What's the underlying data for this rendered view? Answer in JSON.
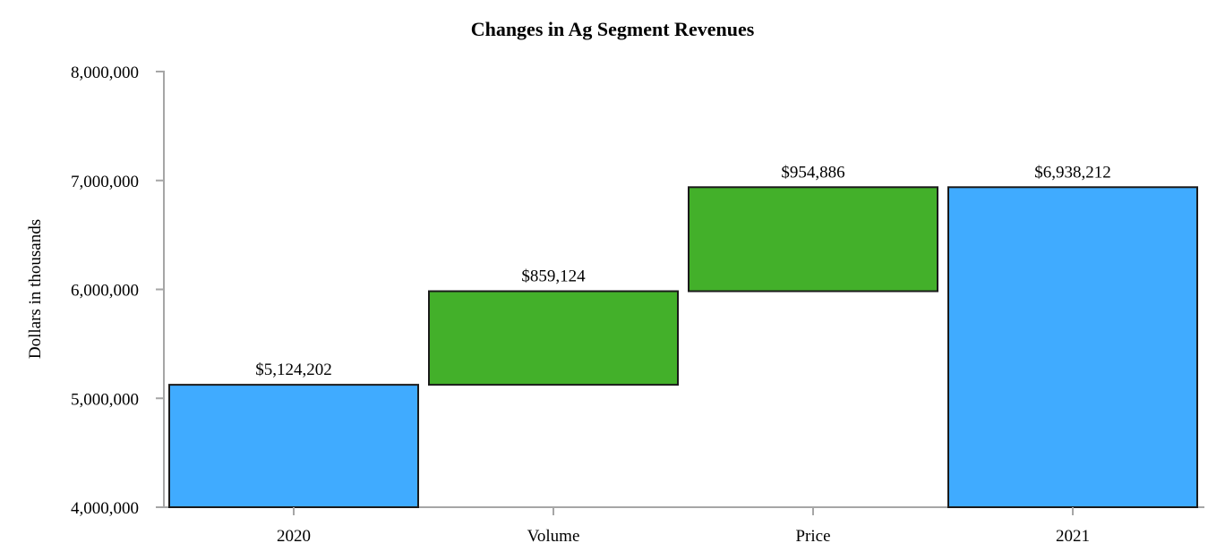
{
  "chart_data": {
    "type": "waterfall",
    "title": "Changes in Ag Segment Revenues",
    "xlabel": "",
    "ylabel": "Dollars in thousands",
    "ylim": [
      4000000,
      8000000
    ],
    "yticks": [
      4000000,
      5000000,
      6000000,
      7000000,
      8000000
    ],
    "ytick_labels": [
      "4,000,000",
      "5,000,000",
      "6,000,000",
      "7,000,000",
      "8,000,000"
    ],
    "categories": [
      "2020",
      "Volume",
      "Price",
      "2021"
    ],
    "bars": [
      {
        "category": "2020",
        "kind": "total",
        "start": 4000000,
        "end": 5124202,
        "label": "$5,124,202",
        "color": "#40ABFF"
      },
      {
        "category": "Volume",
        "kind": "delta",
        "start": 5124202,
        "end": 5983326,
        "label": "$859,124",
        "color": "#43B02A"
      },
      {
        "category": "Price",
        "kind": "delta",
        "start": 5983326,
        "end": 6938212,
        "label": "$954,886",
        "color": "#43B02A"
      },
      {
        "category": "2021",
        "kind": "total",
        "start": 4000000,
        "end": 6938212,
        "label": "$6,938,212",
        "color": "#40ABFF"
      }
    ],
    "axis_color": "#A6A6A6",
    "bar_edge_color": "#1A1A1A"
  }
}
